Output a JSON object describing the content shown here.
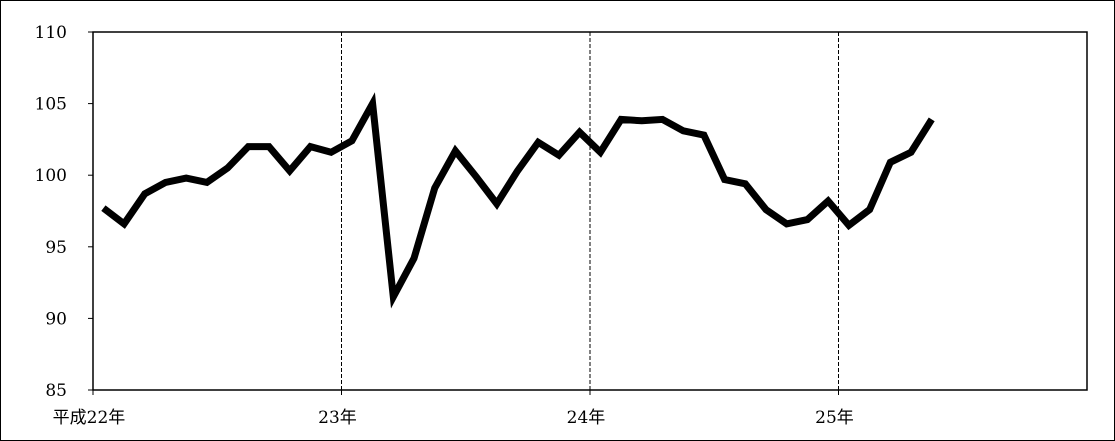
{
  "chart_data": {
    "type": "line",
    "title": "",
    "xlabel": "",
    "ylabel": "",
    "ylim": [
      85,
      110
    ],
    "yticks": [
      85,
      90,
      95,
      100,
      105,
      110
    ],
    "ytick_labels": [
      "85",
      "90",
      "95",
      "100",
      "105",
      "110"
    ],
    "xlim": [
      0,
      48
    ],
    "x_tick_labels": [
      {
        "x": 0,
        "label": "平成22年"
      },
      {
        "x": 12,
        "label": "23年"
      },
      {
        "x": 24,
        "label": "24年"
      },
      {
        "x": 36,
        "label": "25年"
      }
    ],
    "year_dividers": [
      12,
      24,
      36
    ],
    "grid": false,
    "legend": "none",
    "line_color": "#000000",
    "series": [
      {
        "x": [
          0.5,
          1.5,
          2.5,
          3.5,
          4.5,
          5.5,
          6.5,
          7.5,
          8.5,
          9.5,
          10.5,
          11.5,
          12.5,
          13.5,
          14.5,
          15.5,
          16.5,
          17.5,
          18.5,
          19.5,
          20.5,
          21.5,
          22.5,
          23.5,
          24.5,
          25.5,
          26.5,
          27.5,
          28.5,
          29.5,
          30.5,
          31.5,
          32.5,
          33.5,
          34.5,
          35.5,
          36.5,
          37.5,
          38.5,
          39.5,
          40.5
        ],
        "values": [
          97.7,
          96.6,
          98.7,
          99.5,
          99.8,
          99.5,
          100.5,
          102.0,
          102.0,
          100.3,
          102.0,
          101.6,
          102.4,
          105.0,
          91.5,
          94.2,
          99.1,
          101.7,
          99.9,
          98.0,
          100.3,
          102.3,
          101.4,
          103.0,
          101.6,
          103.9,
          103.8,
          103.9,
          103.1,
          102.8,
          99.7,
          99.4,
          97.6,
          96.6,
          96.9,
          98.2,
          96.5,
          97.6,
          100.9,
          101.6,
          103.9
        ]
      }
    ]
  }
}
